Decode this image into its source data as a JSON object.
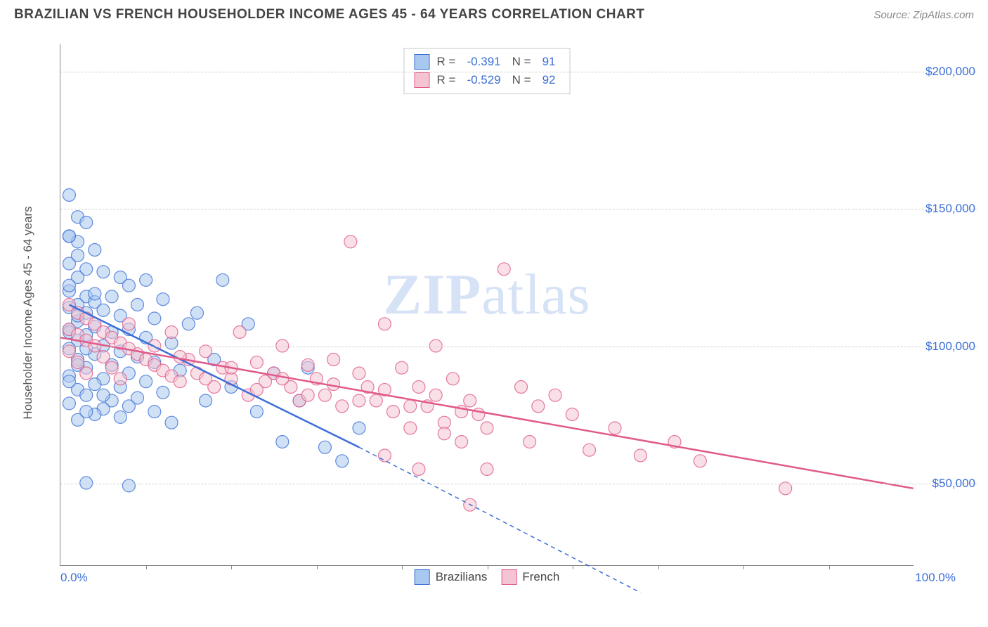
{
  "title": "BRAZILIAN VS FRENCH HOUSEHOLDER INCOME AGES 45 - 64 YEARS CORRELATION CHART",
  "source_label": "Source: ZipAtlas.com",
  "watermark_a": "ZIP",
  "watermark_b": "atlas",
  "chart": {
    "type": "scatter",
    "ylabel": "Householder Income Ages 45 - 64 years",
    "x_min_label": "0.0%",
    "x_max_label": "100.0%",
    "xlim": [
      0,
      100
    ],
    "ylim": [
      20000,
      210000
    ],
    "y_ticks": [
      50000,
      100000,
      150000,
      200000
    ],
    "y_tick_labels": [
      "$50,000",
      "$100,000",
      "$150,000",
      "$200,000"
    ],
    "x_ticks_minor": [
      10,
      20,
      30,
      40,
      50,
      60,
      70,
      80,
      90
    ],
    "grid_color": "#d8d8d8",
    "axis_color": "#888888",
    "background_color": "#ffffff",
    "tick_label_color": "#3b6fd6",
    "label_color": "#555555",
    "label_fontsize": 17,
    "tick_fontsize": 17,
    "marker_radius": 9,
    "marker_opacity": 0.55,
    "marker_stroke_width": 1.2,
    "trend_line_width": 2.5,
    "series": [
      {
        "name": "Brazilians",
        "fill": "#a9c8ef",
        "stroke": "#3b6fd6",
        "r_label": "R =",
        "r_value": "-0.391",
        "n_label": "N =",
        "n_value": "91",
        "trend": {
          "x1": 1,
          "y1": 115000,
          "x2": 35,
          "y2": 63000,
          "dash_x2": 68,
          "dash_y2": 10000
        },
        "points": [
          [
            1,
            155000
          ],
          [
            2,
            147000
          ],
          [
            3,
            145000
          ],
          [
            1,
            140000
          ],
          [
            2,
            138000
          ],
          [
            4,
            135000
          ],
          [
            1,
            130000
          ],
          [
            3,
            128000
          ],
          [
            5,
            127000
          ],
          [
            7,
            125000
          ],
          [
            2,
            125000
          ],
          [
            10,
            124000
          ],
          [
            8,
            122000
          ],
          [
            1,
            120000
          ],
          [
            3,
            118000
          ],
          [
            6,
            118000
          ],
          [
            12,
            117000
          ],
          [
            4,
            116000
          ],
          [
            2,
            115000
          ],
          [
            9,
            115000
          ],
          [
            1,
            114000
          ],
          [
            5,
            113000
          ],
          [
            3,
            112000
          ],
          [
            7,
            111000
          ],
          [
            11,
            110000
          ],
          [
            2,
            109000
          ],
          [
            15,
            108000
          ],
          [
            4,
            107000
          ],
          [
            1,
            106000
          ],
          [
            8,
            106000
          ],
          [
            6,
            105000
          ],
          [
            3,
            104000
          ],
          [
            10,
            103000
          ],
          [
            2,
            102000
          ],
          [
            13,
            101000
          ],
          [
            5,
            100000
          ],
          [
            1,
            99000
          ],
          [
            7,
            98000
          ],
          [
            4,
            97000
          ],
          [
            9,
            96000
          ],
          [
            2,
            95000
          ],
          [
            11,
            94000
          ],
          [
            6,
            93000
          ],
          [
            3,
            92000
          ],
          [
            14,
            91000
          ],
          [
            8,
            90000
          ],
          [
            1,
            89000
          ],
          [
            5,
            88000
          ],
          [
            10,
            87000
          ],
          [
            4,
            86000
          ],
          [
            7,
            85000
          ],
          [
            2,
            84000
          ],
          [
            12,
            83000
          ],
          [
            3,
            82000
          ],
          [
            9,
            81000
          ],
          [
            6,
            80000
          ],
          [
            1,
            79000
          ],
          [
            8,
            78000
          ],
          [
            5,
            77000
          ],
          [
            11,
            76000
          ],
          [
            4,
            75000
          ],
          [
            7,
            74000
          ],
          [
            2,
            73000
          ],
          [
            13,
            72000
          ],
          [
            19,
            124000
          ],
          [
            16,
            112000
          ],
          [
            22,
            108000
          ],
          [
            18,
            95000
          ],
          [
            25,
            90000
          ],
          [
            20,
            85000
          ],
          [
            17,
            80000
          ],
          [
            23,
            76000
          ],
          [
            28,
            80000
          ],
          [
            26,
            65000
          ],
          [
            31,
            63000
          ],
          [
            29,
            92000
          ],
          [
            33,
            58000
          ],
          [
            35,
            70000
          ],
          [
            3,
            50000
          ],
          [
            8,
            49000
          ],
          [
            1,
            140000
          ],
          [
            2,
            133000
          ],
          [
            1,
            122000
          ],
          [
            4,
            119000
          ],
          [
            2,
            111000
          ],
          [
            1,
            105000
          ],
          [
            3,
            99000
          ],
          [
            2,
            93000
          ],
          [
            1,
            87000
          ],
          [
            5,
            82000
          ],
          [
            3,
            76000
          ]
        ]
      },
      {
        "name": "French",
        "fill": "#f4c4d2",
        "stroke": "#e05a8a",
        "r_label": "R =",
        "r_value": "-0.529",
        "n_label": "N =",
        "n_value": "92",
        "trend": {
          "x1": 0,
          "y1": 103000,
          "x2": 100,
          "y2": 48000
        },
        "points": [
          [
            1,
            115000
          ],
          [
            2,
            112000
          ],
          [
            3,
            110000
          ],
          [
            4,
            108000
          ],
          [
            1,
            106000
          ],
          [
            5,
            105000
          ],
          [
            2,
            104000
          ],
          [
            6,
            103000
          ],
          [
            3,
            102000
          ],
          [
            7,
            101000
          ],
          [
            4,
            100000
          ],
          [
            8,
            99000
          ],
          [
            1,
            98000
          ],
          [
            9,
            97000
          ],
          [
            5,
            96000
          ],
          [
            10,
            95000
          ],
          [
            2,
            94000
          ],
          [
            11,
            93000
          ],
          [
            6,
            92000
          ],
          [
            12,
            91000
          ],
          [
            3,
            90000
          ],
          [
            13,
            89000
          ],
          [
            7,
            88000
          ],
          [
            14,
            87000
          ],
          [
            15,
            95000
          ],
          [
            16,
            90000
          ],
          [
            17,
            98000
          ],
          [
            18,
            85000
          ],
          [
            19,
            92000
          ],
          [
            20,
            88000
          ],
          [
            21,
            105000
          ],
          [
            22,
            82000
          ],
          [
            23,
            94000
          ],
          [
            24,
            87000
          ],
          [
            25,
            90000
          ],
          [
            26,
            100000
          ],
          [
            27,
            85000
          ],
          [
            28,
            80000
          ],
          [
            29,
            93000
          ],
          [
            30,
            88000
          ],
          [
            31,
            82000
          ],
          [
            32,
            95000
          ],
          [
            33,
            78000
          ],
          [
            34,
            138000
          ],
          [
            35,
            90000
          ],
          [
            36,
            85000
          ],
          [
            37,
            80000
          ],
          [
            38,
            108000
          ],
          [
            39,
            76000
          ],
          [
            40,
            92000
          ],
          [
            41,
            70000
          ],
          [
            42,
            85000
          ],
          [
            43,
            78000
          ],
          [
            44,
            100000
          ],
          [
            45,
            72000
          ],
          [
            46,
            88000
          ],
          [
            47,
            65000
          ],
          [
            48,
            80000
          ],
          [
            49,
            75000
          ],
          [
            50,
            70000
          ],
          [
            52,
            128000
          ],
          [
            54,
            85000
          ],
          [
            56,
            78000
          ],
          [
            58,
            82000
          ],
          [
            60,
            75000
          ],
          [
            62,
            62000
          ],
          [
            48,
            42000
          ],
          [
            50,
            55000
          ],
          [
            55,
            65000
          ],
          [
            45,
            68000
          ],
          [
            38,
            60000
          ],
          [
            42,
            55000
          ],
          [
            65,
            70000
          ],
          [
            68,
            60000
          ],
          [
            72,
            65000
          ],
          [
            75,
            58000
          ],
          [
            85,
            48000
          ],
          [
            13,
            105000
          ],
          [
            8,
            108000
          ],
          [
            11,
            100000
          ],
          [
            14,
            96000
          ],
          [
            17,
            88000
          ],
          [
            20,
            92000
          ],
          [
            23,
            84000
          ],
          [
            26,
            88000
          ],
          [
            29,
            82000
          ],
          [
            32,
            86000
          ],
          [
            35,
            80000
          ],
          [
            38,
            84000
          ],
          [
            41,
            78000
          ],
          [
            44,
            82000
          ],
          [
            47,
            76000
          ]
        ]
      }
    ]
  },
  "legend_bottom": [
    {
      "label": "Brazilians",
      "fill": "#a9c8ef",
      "stroke": "#3b6fd6"
    },
    {
      "label": "French",
      "fill": "#f4c4d2",
      "stroke": "#e05a8a"
    }
  ]
}
